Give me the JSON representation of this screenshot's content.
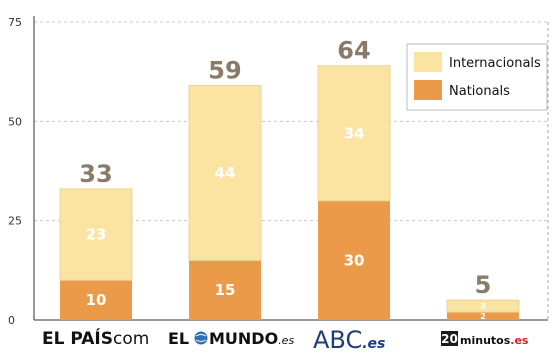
{
  "chart_data": {
    "type": "bar",
    "stacked": true,
    "categories": [
      "EL PAÍS.com",
      "EL MUNDO.es",
      "ABC.es",
      "20minutos.es"
    ],
    "series": [
      {
        "name": "Nationals",
        "color": "#ea9a49",
        "values": [
          10,
          15,
          30,
          2
        ]
      },
      {
        "name": "Internacionals",
        "color": "#fbe3a2",
        "values": [
          23,
          44,
          34,
          3
        ]
      }
    ],
    "totals": [
      33,
      59,
      64,
      5
    ],
    "ylim": [
      0,
      75
    ],
    "yticks": [
      0,
      25,
      50,
      75
    ],
    "grid": true,
    "legend": "top-right",
    "legend_order": [
      "Internacionals",
      "Nationals"
    ],
    "category_logo_text": [
      {
        "main": "EL PAÍS",
        "suffix": "com"
      },
      {
        "main": "EL",
        "mid": "MUNDO",
        "suffix": ".es"
      },
      {
        "main": "ABC",
        "suffix": ".es"
      },
      {
        "main": "20",
        "mid": "minutos",
        "suffix": ".es"
      }
    ]
  }
}
